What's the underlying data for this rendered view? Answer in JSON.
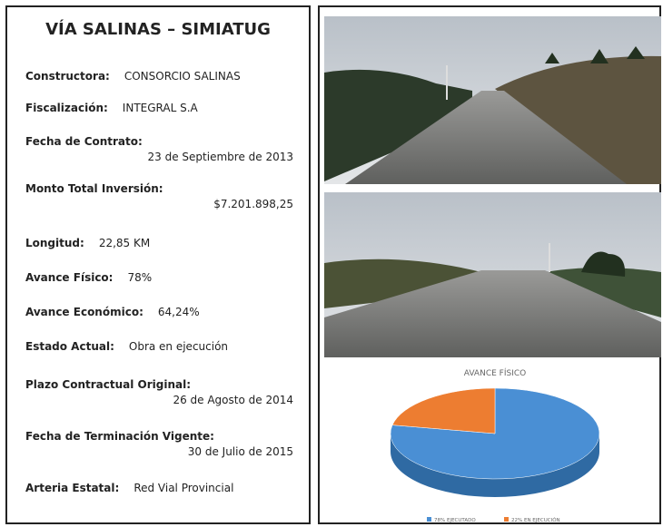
{
  "header": {
    "title": "VÍA SALINAS – SIMIATUG"
  },
  "fields": [
    {
      "label": "Constructora:",
      "value": "CONSORCIO SALINAS"
    },
    {
      "label": "Fiscalización:",
      "value": "INTEGRAL S.A"
    },
    {
      "label": "Fecha de Contrato:",
      "value": "23 de Septiembre de 2013"
    },
    {
      "label": "Monto Total Inversión:",
      "value": "$7.201.898,25"
    },
    {
      "label": "Longitud:",
      "value": "22,85 KM"
    },
    {
      "label": "Avance Físico:",
      "value": "78%"
    },
    {
      "label": "Avance Económico:",
      "value": "64,24%"
    },
    {
      "label": "Estado Actual:",
      "value": "Obra en ejecución"
    },
    {
      "label": "Plazo Contractual Original:",
      "value": "26 de Agosto de 2014"
    },
    {
      "label": "Fecha de Terminación Vigente:",
      "value": "30 de Julio de 2015"
    },
    {
      "label": "Arteria Estatal:",
      "value": "Red Vial Provincial"
    }
  ],
  "chart": {
    "type": "pie",
    "title": "AVANCE FÍSICO",
    "categories": [
      "78% EJECUTADO",
      "22% EN EJECUCIÓN"
    ],
    "values": [
      78,
      22
    ],
    "colors": [
      "#4a8fd4",
      "#ed7d31"
    ]
  }
}
